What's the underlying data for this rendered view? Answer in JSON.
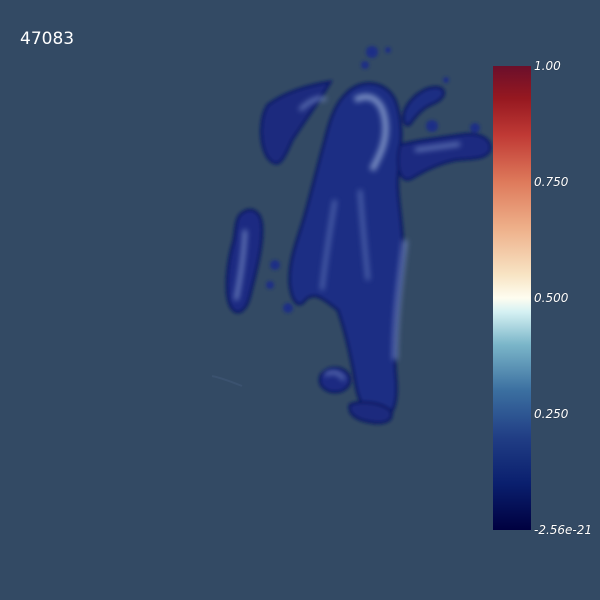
{
  "viewport": {
    "background": "#334a64",
    "frame_label": "47083"
  },
  "colorbar": {
    "colormap": "Cool to Warm (Extended)",
    "range": [
      -2.56e-21,
      1.0
    ],
    "ticks": [
      {
        "value": 1.0,
        "label": "1.00"
      },
      {
        "value": 0.75,
        "label": "0.750"
      },
      {
        "value": 0.5,
        "label": "0.500"
      },
      {
        "value": 0.25,
        "label": "0.250"
      },
      {
        "value": -2.56e-21,
        "label": "-2.56e-21"
      }
    ],
    "stops": [
      {
        "t": 0.0,
        "color": "#000040"
      },
      {
        "t": 0.1,
        "color": "#0a1f6e"
      },
      {
        "t": 0.2,
        "color": "#213e85"
      },
      {
        "t": 0.3,
        "color": "#3b6fa0"
      },
      {
        "t": 0.4,
        "color": "#7bb6c9"
      },
      {
        "t": 0.47,
        "color": "#d5f1f3"
      },
      {
        "t": 0.5,
        "color": "#fefdf0"
      },
      {
        "t": 0.55,
        "color": "#f8e4c4"
      },
      {
        "t": 0.65,
        "color": "#eeb08a"
      },
      {
        "t": 0.75,
        "color": "#de7a5b"
      },
      {
        "t": 0.85,
        "color": "#c03a35"
      },
      {
        "t": 0.93,
        "color": "#961820"
      },
      {
        "t": 1.0,
        "color": "#6b0f2b"
      }
    ]
  }
}
